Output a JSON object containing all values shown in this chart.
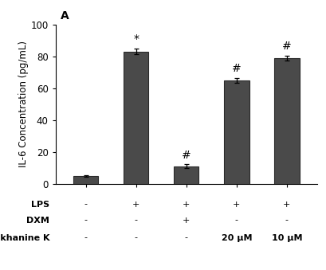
{
  "bar_values": [
    5.0,
    83.0,
    11.0,
    65.0,
    79.0
  ],
  "bar_errors": [
    0.5,
    1.8,
    1.2,
    1.5,
    1.5
  ],
  "bar_color": "#4a4a4a",
  "bar_edge_color": "#2a2a2a",
  "bar_width": 0.5,
  "ylim": [
    0,
    100
  ],
  "yticks": [
    0,
    20,
    40,
    60,
    80,
    100
  ],
  "ylabel": "IL-6 Concentration (pg/mL)",
  "panel_label": "A",
  "x_positions": [
    0,
    1,
    2,
    3,
    4
  ],
  "annotations": [
    "",
    "*",
    "#",
    "#",
    "#"
  ],
  "annot_y_offsets": [
    0,
    2.5,
    2.0,
    2.5,
    2.5
  ],
  "lps_row": [
    "-",
    "+",
    "+",
    "+",
    "+"
  ],
  "dxm_row": [
    "-",
    "-",
    "+",
    "-",
    "-"
  ],
  "melok_row": [
    "-",
    "-",
    "-",
    "20 μM",
    "10 μM"
  ],
  "row_labels": [
    "LPS",
    "DXM",
    "melokhanine K"
  ],
  "background_color": "#ffffff",
  "ylabel_fontsize": 8.5,
  "tick_fontsize": 8.5,
  "annot_fontsize": 10,
  "panel_fontsize": 10,
  "row_label_fontsize": 8,
  "row_value_fontsize": 8
}
